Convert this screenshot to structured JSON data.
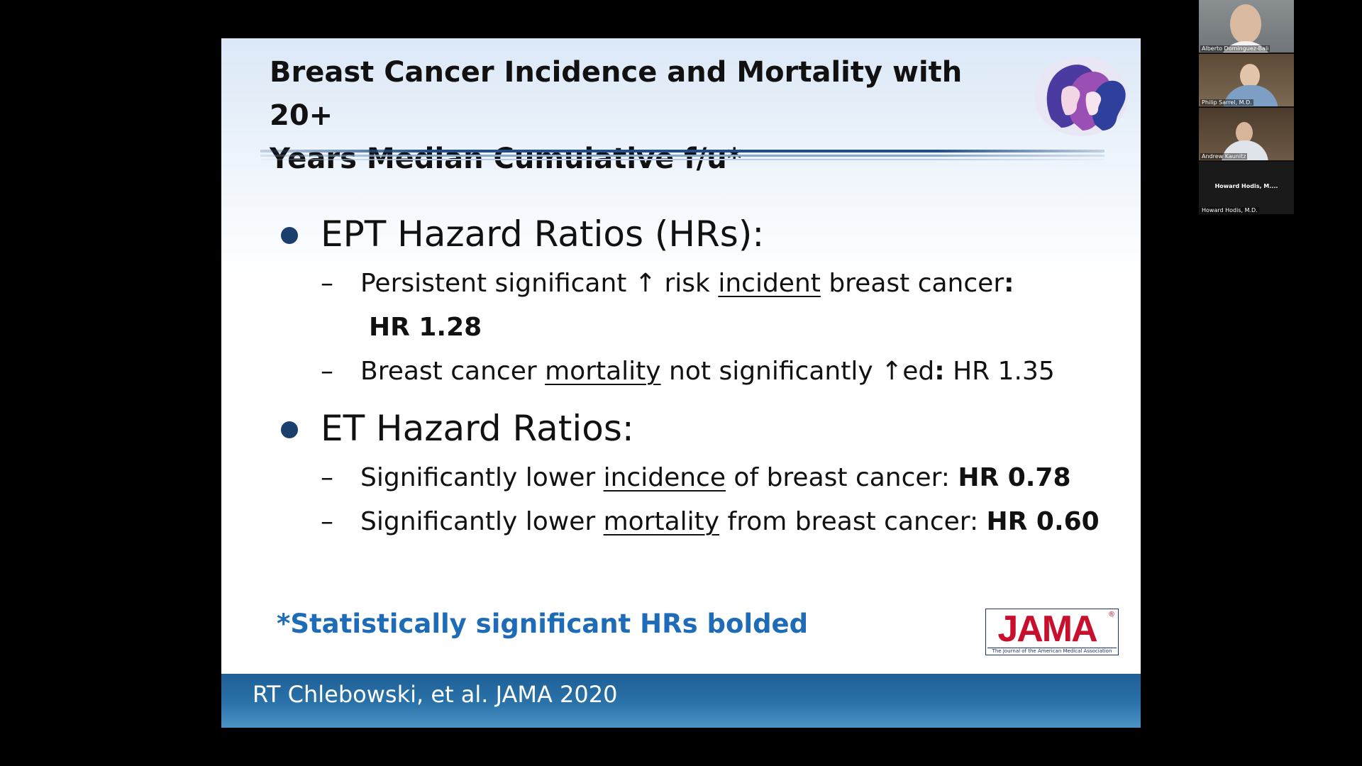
{
  "slide": {
    "title_lines": [
      "Breast Cancer Incidence and Mortality  with 20+",
      "Years Median Cumulative f/u*"
    ],
    "bullets": [
      {
        "heading": "EPT Hazard Ratios (HRs):",
        "items": [
          {
            "pre": "Persistent significant ↑ risk ",
            "underlined": "incident",
            "post": " breast cancer",
            "colon": ":",
            "bold_value": "HR 1.28"
          },
          {
            "pre": "Breast cancer ",
            "underlined": "mortality",
            "post": " not  significantly ↑ed",
            "colon": ":",
            "value": " HR 1.35"
          }
        ]
      },
      {
        "heading": "ET Hazard Ratios:",
        "items": [
          {
            "pre": "Significantly lower ",
            "underlined": "incidence",
            "post": " of breast cancer: ",
            "bold_value": "HR 0.78"
          },
          {
            "pre": "Significantly lower ",
            "underlined": "mortality",
            "post": " from breast cancer: ",
            "bold_value": "HR 0.60"
          }
        ]
      }
    ],
    "dash": "–",
    "footnote": "*Statistically significant HRs bolded",
    "jama_logo": {
      "word": "JAMA",
      "reg": "®",
      "tagline": "The Journal of the American Medical Association"
    },
    "citation": "RT Chlebowski, et al. JAMA 2020"
  },
  "participants": [
    {
      "name": "Alberto Dominguez-Bali"
    },
    {
      "name": "Philip Sarrel, M.D."
    },
    {
      "name": "Andrew Kaunitz"
    },
    {
      "name": "Howard Hodis, M.D.",
      "center_label": "Howard Hodis, M...."
    }
  ],
  "colors": {
    "title_text": "#111111",
    "bullet_dot": "#1b3f6d",
    "footnote": "#1e6bb8",
    "footer_band": "#2a73aa",
    "jama_red": "#c8102e"
  }
}
